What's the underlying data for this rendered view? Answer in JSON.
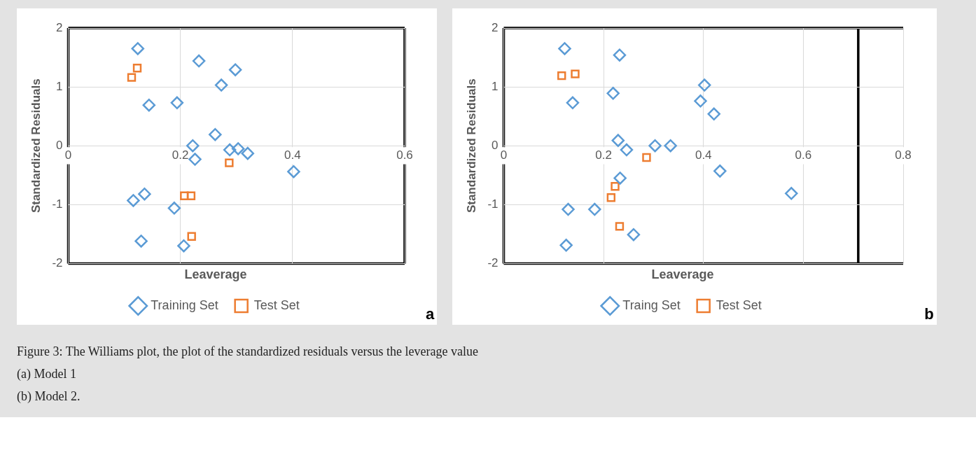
{
  "chart_data": [
    {
      "type": "scatter",
      "xlabel": "Leaverage",
      "ylabel": "Standardized Residuals",
      "xlim": [
        0,
        0.6
      ],
      "xticks": [
        0,
        0.2,
        0.4,
        0.6
      ],
      "ylim": [
        -2,
        2
      ],
      "yticks": [
        -2,
        -1,
        0,
        1,
        2
      ],
      "grid": true,
      "legend": "bottom",
      "ref_lines": [
        {
          "axis": "y",
          "value": 2,
          "color": "#000000"
        },
        {
          "axis": "y",
          "value": -2,
          "color": "#000000"
        },
        {
          "axis": "x",
          "value": 0.6,
          "color": "#000000"
        }
      ],
      "series": [
        {
          "name": "Training Set",
          "color": "#5b9bd5",
          "marker": "diamond",
          "x": [
            0.124,
            0.233,
            0.298,
            0.273,
            0.144,
            0.194,
            0.262,
            0.222,
            0.226,
            0.288,
            0.303,
            0.32,
            0.402,
            0.116,
            0.136,
            0.189,
            0.13,
            0.206
          ],
          "values": [
            1.65,
            1.44,
            1.29,
            1.03,
            0.69,
            0.73,
            0.19,
            0.0,
            -0.23,
            -0.07,
            -0.05,
            -0.13,
            -0.44,
            -0.93,
            -0.82,
            -1.06,
            -1.62,
            -1.7
          ]
        },
        {
          "name": "Test Set",
          "color": "#ed7d31",
          "marker": "square",
          "x": [
            0.123,
            0.113,
            0.287,
            0.207,
            0.219,
            0.22
          ],
          "values": [
            1.32,
            1.16,
            -0.29,
            -0.85,
            -0.85,
            -1.54
          ]
        }
      ],
      "annotations": [
        "a"
      ]
    },
    {
      "type": "scatter",
      "xlabel": "Leaverage",
      "ylabel": "Standardized Residuals",
      "xlim": [
        0,
        0.8
      ],
      "xticks": [
        0,
        0.2,
        0.4,
        0.6,
        0.8
      ],
      "ylim": [
        -2,
        2
      ],
      "yticks": [
        -2,
        -1,
        0,
        1,
        2
      ],
      "grid": true,
      "legend": "bottom",
      "ref_lines": [
        {
          "axis": "y",
          "value": 2,
          "color": "#000000"
        },
        {
          "axis": "y",
          "value": -2,
          "color": "#000000"
        },
        {
          "axis": "x",
          "value": 0.71,
          "color": "#000000"
        }
      ],
      "series": [
        {
          "name": "Traing Set",
          "color": "#5b9bd5",
          "marker": "diamond",
          "x": [
            0.122,
            0.232,
            0.219,
            0.138,
            0.402,
            0.394,
            0.421,
            0.229,
            0.246,
            0.303,
            0.334,
            0.433,
            0.233,
            0.576,
            0.129,
            0.182,
            0.125,
            0.26
          ],
          "values": [
            1.65,
            1.54,
            0.89,
            0.73,
            1.03,
            0.76,
            0.54,
            0.09,
            -0.07,
            0.0,
            0.0,
            -0.43,
            -0.55,
            -0.81,
            -1.08,
            -1.08,
            -1.69,
            -1.51
          ]
        },
        {
          "name": "Test Set",
          "color": "#ed7d31",
          "marker": "square",
          "x": [
            0.116,
            0.143,
            0.286,
            0.223,
            0.215,
            0.232
          ],
          "values": [
            1.19,
            1.22,
            -0.2,
            -0.69,
            -0.88,
            -1.37
          ]
        }
      ],
      "annotations": [
        "b",
        "Figure 3: The Williams plot, the plot of the standardized residuals versus the leverage value",
        "(a) Model 1",
        "(b) Model 2."
      ]
    }
  ]
}
